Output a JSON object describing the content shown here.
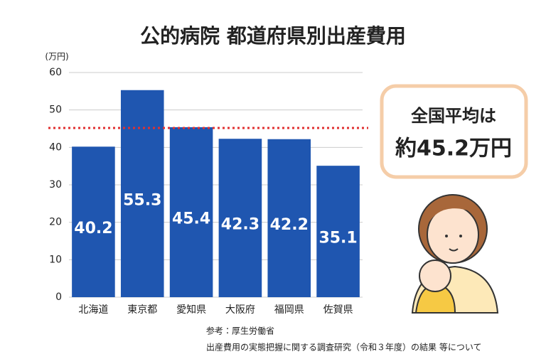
{
  "chart_data": {
    "type": "bar",
    "title": "公的病院 都道府県別出産費用",
    "y_label": "(万円)",
    "categories": [
      "北海道",
      "東京都",
      "愛知県",
      "大阪府",
      "福岡県",
      "佐賀県"
    ],
    "values": [
      40.2,
      55.3,
      45.4,
      42.3,
      42.2,
      35.1
    ],
    "color": "#1f56b0",
    "ylim": [
      0,
      60
    ],
    "yticks": [
      0,
      10,
      20,
      30,
      40,
      50,
      60
    ],
    "grid": true,
    "average": {
      "value": 45.2,
      "text": "全国平均は",
      "label": "約45.2万円",
      "color": "#e03030"
    },
    "source": [
      "参考：厚生労働省",
      "出産費用の実態把握に関する調査研究（令和３年度）の結果 等について"
    ]
  }
}
